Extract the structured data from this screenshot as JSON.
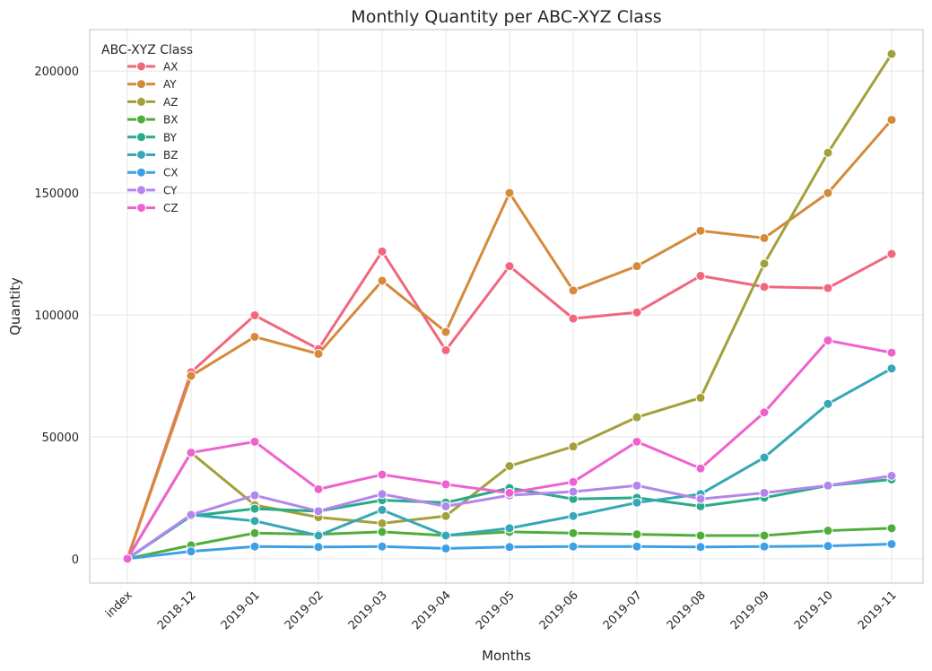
{
  "chart_data": {
    "type": "line",
    "title": "Monthly Quantity per ABC-XYZ Class",
    "xlabel": "Months",
    "ylabel": "Quantity",
    "categories": [
      "index",
      "2018-12",
      "2019-01",
      "2019-02",
      "2019-03",
      "2019-04",
      "2019-05",
      "2019-06",
      "2019-07",
      "2019-08",
      "2019-09",
      "2019-10",
      "2019-11"
    ],
    "ylim": [
      -10000,
      217000
    ],
    "yticks": [
      0,
      50000,
      100000,
      150000,
      200000
    ],
    "grid": true,
    "legend": {
      "title": "ABC-XYZ Class",
      "placement": "top-left"
    },
    "series": [
      {
        "name": "AX",
        "color": "#f0677e",
        "values": [
          0,
          76500,
          99800,
          86000,
          126000,
          85500,
          120000,
          98500,
          101000,
          116000,
          111500,
          111000,
          125000
        ]
      },
      {
        "name": "AY",
        "color": "#d58a3a",
        "values": [
          0,
          75000,
          91000,
          84000,
          114000,
          93000,
          150000,
          110000,
          120000,
          134500,
          131500,
          150000,
          180000
        ]
      },
      {
        "name": "AZ",
        "color": "#a3a03a",
        "values": [
          0,
          43500,
          22000,
          17000,
          14500,
          17500,
          38000,
          46000,
          58000,
          66000,
          121000,
          166500,
          207000
        ]
      },
      {
        "name": "BX",
        "color": "#4fae3b",
        "values": [
          0,
          5500,
          10500,
          10000,
          11000,
          9500,
          11000,
          10500,
          10000,
          9500,
          9500,
          11500,
          12500
        ]
      },
      {
        "name": "BY",
        "color": "#2aaa8a",
        "values": [
          0,
          17500,
          20500,
          19500,
          24000,
          23000,
          29000,
          24500,
          25000,
          21500,
          25000,
          30000,
          32500
        ]
      },
      {
        "name": "BZ",
        "color": "#36a7b7",
        "values": [
          0,
          18000,
          15500,
          9500,
          20000,
          9500,
          12500,
          17500,
          23000,
          26500,
          41500,
          63500,
          78000
        ]
      },
      {
        "name": "CX",
        "color": "#3ea0e4",
        "values": [
          0,
          3000,
          5000,
          4800,
          5000,
          4200,
          4800,
          5000,
          5000,
          4800,
          5000,
          5200,
          6000
        ]
      },
      {
        "name": "CY",
        "color": "#b386ec",
        "values": [
          0,
          18000,
          26000,
          19500,
          26500,
          21500,
          26000,
          27500,
          30000,
          24500,
          27000,
          30000,
          34000
        ]
      },
      {
        "name": "CZ",
        "color": "#ee62cf",
        "values": [
          0,
          43500,
          48000,
          28500,
          34500,
          30500,
          27000,
          31500,
          48000,
          37000,
          60000,
          89500,
          84500
        ]
      }
    ]
  }
}
